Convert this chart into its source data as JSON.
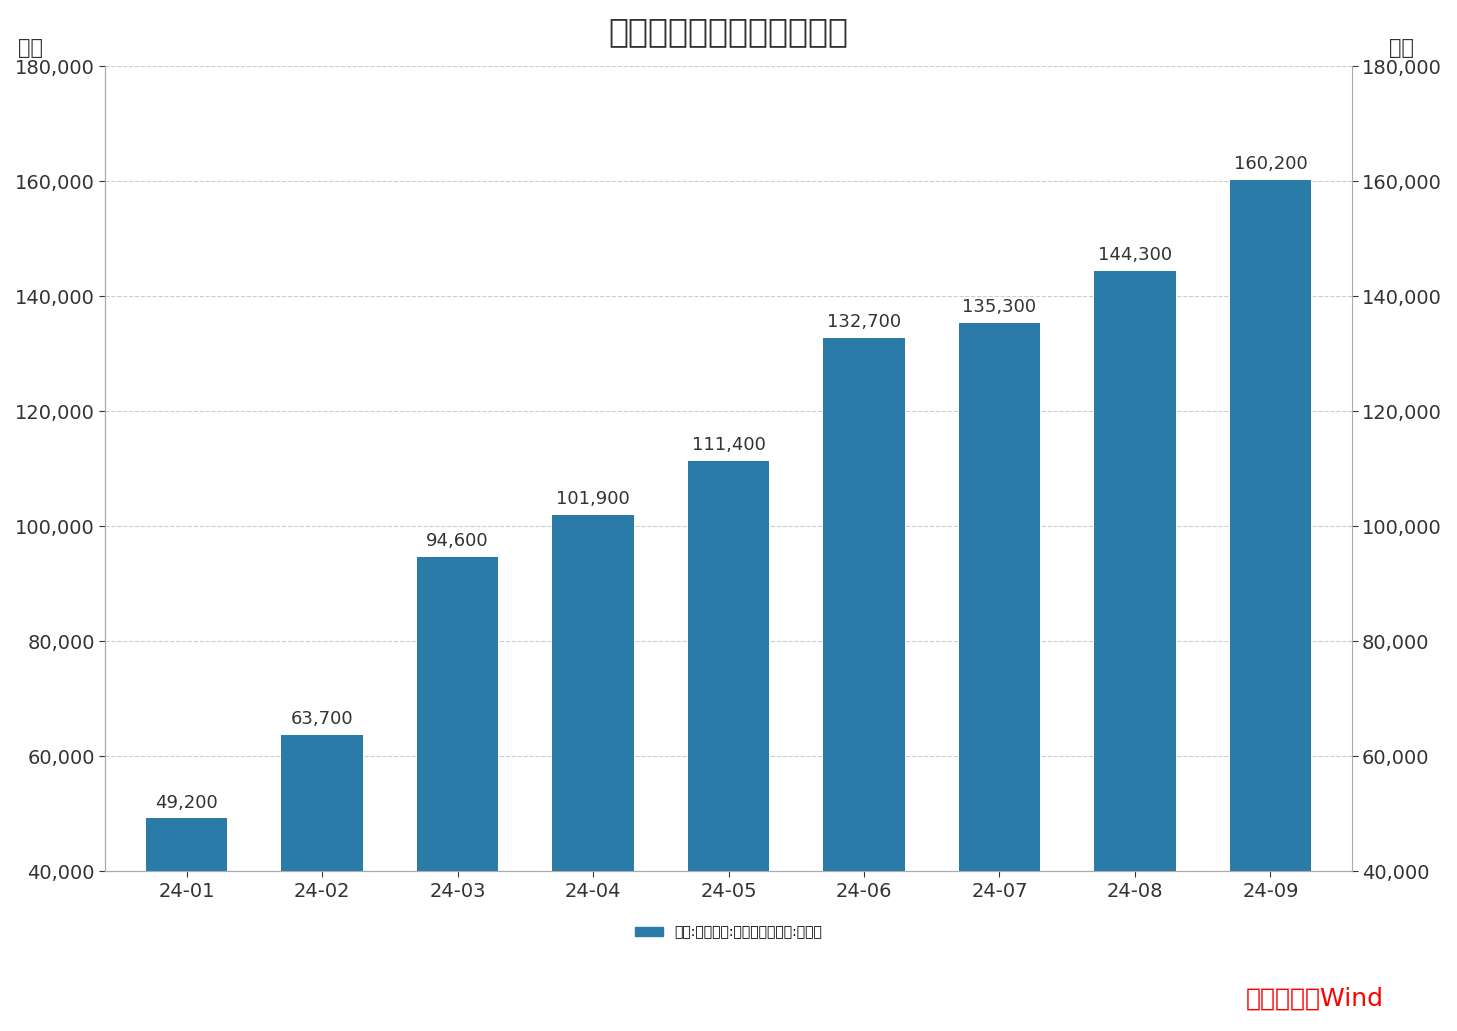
{
  "title": "新增人民币贷款累计值情况",
  "ylabel_left": "亿元",
  "ylabel_right": "亿元",
  "categories": [
    "24-01",
    "24-02",
    "24-03",
    "24-04",
    "24-05",
    "24-06",
    "24-07",
    "24-08",
    "24-09"
  ],
  "values": [
    49200,
    63700,
    94600,
    101900,
    111400,
    132700,
    135300,
    144300,
    160200
  ],
  "bar_color": "#2B7BA8",
  "ylim": [
    40000,
    180000
  ],
  "yticks": [
    40000,
    60000,
    80000,
    100000,
    120000,
    140000,
    160000,
    180000
  ],
  "legend_label": "中国:金融机构:新增人民币贷款:累计值",
  "source_text": "数据来源：Wind",
  "source_color": "#FF0000",
  "background_color": "#FFFFFF",
  "grid_color": "#CCCCCC",
  "title_fontsize": 24,
  "label_fontsize": 15,
  "tick_fontsize": 14,
  "annotation_fontsize": 13,
  "legend_fontsize": 15,
  "source_fontsize": 18
}
